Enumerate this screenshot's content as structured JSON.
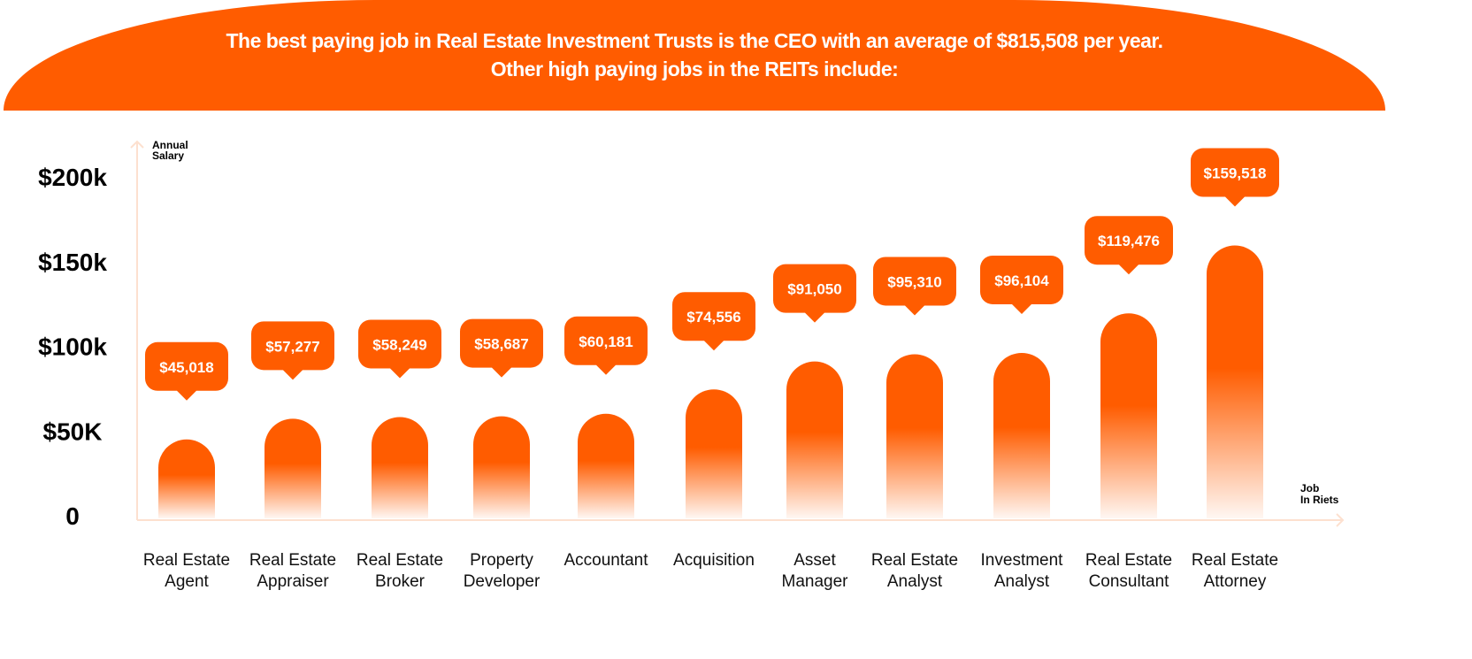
{
  "header": {
    "line1": "The best paying job in Real Estate Investment Trusts is the CEO with an average of $815,508 per year.",
    "line2": "Other high paying jobs in the REITs include:"
  },
  "colors": {
    "accent": "#ff5c00",
    "axis": "#fde0cf"
  },
  "chart_data": {
    "type": "bar",
    "title": "",
    "ylabel": [
      "Annual",
      "Salary"
    ],
    "xlabel": [
      "Job",
      "In Riets"
    ],
    "ylim": [
      0,
      200000
    ],
    "yticks": [
      {
        "value": 0,
        "label": "0"
      },
      {
        "value": 50000,
        "label": "$50K"
      },
      {
        "value": 100000,
        "label": "$100k"
      },
      {
        "value": 150000,
        "label": "$150k"
      },
      {
        "value": 200000,
        "label": "$200k"
      }
    ],
    "grid": false,
    "categories": [
      [
        "Real Estate",
        "Agent"
      ],
      [
        "Real Estate",
        "Appraiser"
      ],
      [
        "Real Estate",
        "Broker"
      ],
      [
        "Property",
        "Developer"
      ],
      [
        "Accountant"
      ],
      [
        "Acquisition"
      ],
      [
        "Asset",
        "Manager"
      ],
      [
        "Real Estate",
        "Analyst"
      ],
      [
        "Investment",
        "Analyst"
      ],
      [
        "Real Estate",
        "Consultant"
      ],
      [
        "Real Estate",
        "Attorney"
      ]
    ],
    "values": [
      45018,
      57277,
      58249,
      58687,
      60181,
      74556,
      91050,
      95310,
      96104,
      119476,
      159518
    ],
    "data_labels": [
      "$45,018",
      "$57,277",
      "$58,249",
      "$58,687",
      "$60,181",
      "$74,556",
      "$91,050",
      "$95,310",
      "$96,104",
      "$119,476",
      "$159,518"
    ]
  }
}
